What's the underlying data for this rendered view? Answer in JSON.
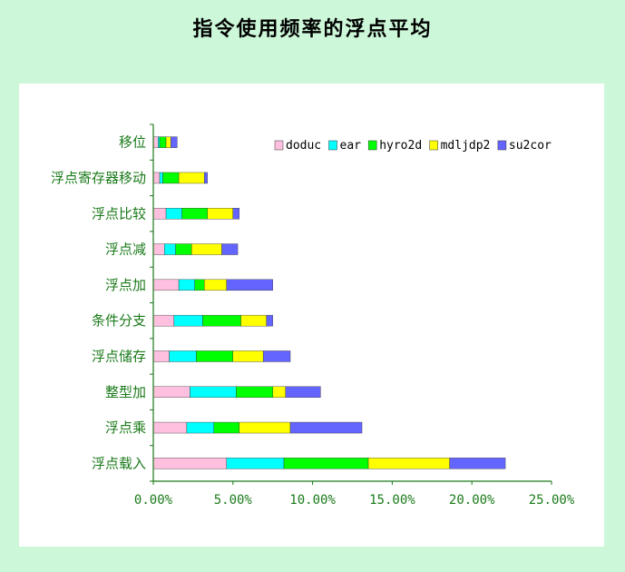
{
  "page": {
    "title": "指令使用频率的浮点平均"
  },
  "chart_data": {
    "type": "bar",
    "orientation": "horizontal",
    "stacked": true,
    "title": "指令使用频率的浮点平均",
    "xlabel": "",
    "ylabel": "",
    "xlim": [
      0,
      25
    ],
    "x_ticks": [
      "0.00%",
      "5.00%",
      "10.00%",
      "15.00%",
      "20.00%",
      "25.00%"
    ],
    "x_tick_values": [
      0,
      5,
      10,
      15,
      20,
      25
    ],
    "legend_position": "top-right",
    "categories": [
      "浮点载入",
      "浮点乘",
      "整型加",
      "浮点储存",
      "条件分支",
      "浮点加",
      "浮点减",
      "浮点比较",
      "浮点寄存器移动",
      "移位"
    ],
    "series": [
      {
        "name": "doduc",
        "color": "#ffc0e0",
        "values": [
          4.6,
          2.1,
          2.3,
          1.0,
          1.3,
          1.6,
          0.7,
          0.8,
          0.4,
          0.3
        ]
      },
      {
        "name": "ear",
        "color": "#00ffff",
        "values": [
          3.6,
          1.7,
          2.9,
          1.7,
          1.8,
          1.0,
          0.7,
          1.0,
          0.2,
          0.1
        ]
      },
      {
        "name": "hyro2d",
        "color": "#00ff00",
        "values": [
          5.3,
          1.6,
          2.3,
          2.3,
          2.4,
          0.6,
          1.0,
          1.6,
          1.0,
          0.4
        ]
      },
      {
        "name": "mdljdp2",
        "color": "#ffff00",
        "values": [
          5.1,
          3.2,
          0.8,
          1.9,
          1.6,
          1.4,
          1.9,
          1.6,
          1.6,
          0.3
        ]
      },
      {
        "name": "su2cor",
        "color": "#6464ff",
        "values": [
          3.5,
          4.5,
          2.2,
          1.7,
          0.4,
          2.9,
          1.0,
          0.4,
          0.2,
          0.4
        ]
      }
    ]
  }
}
